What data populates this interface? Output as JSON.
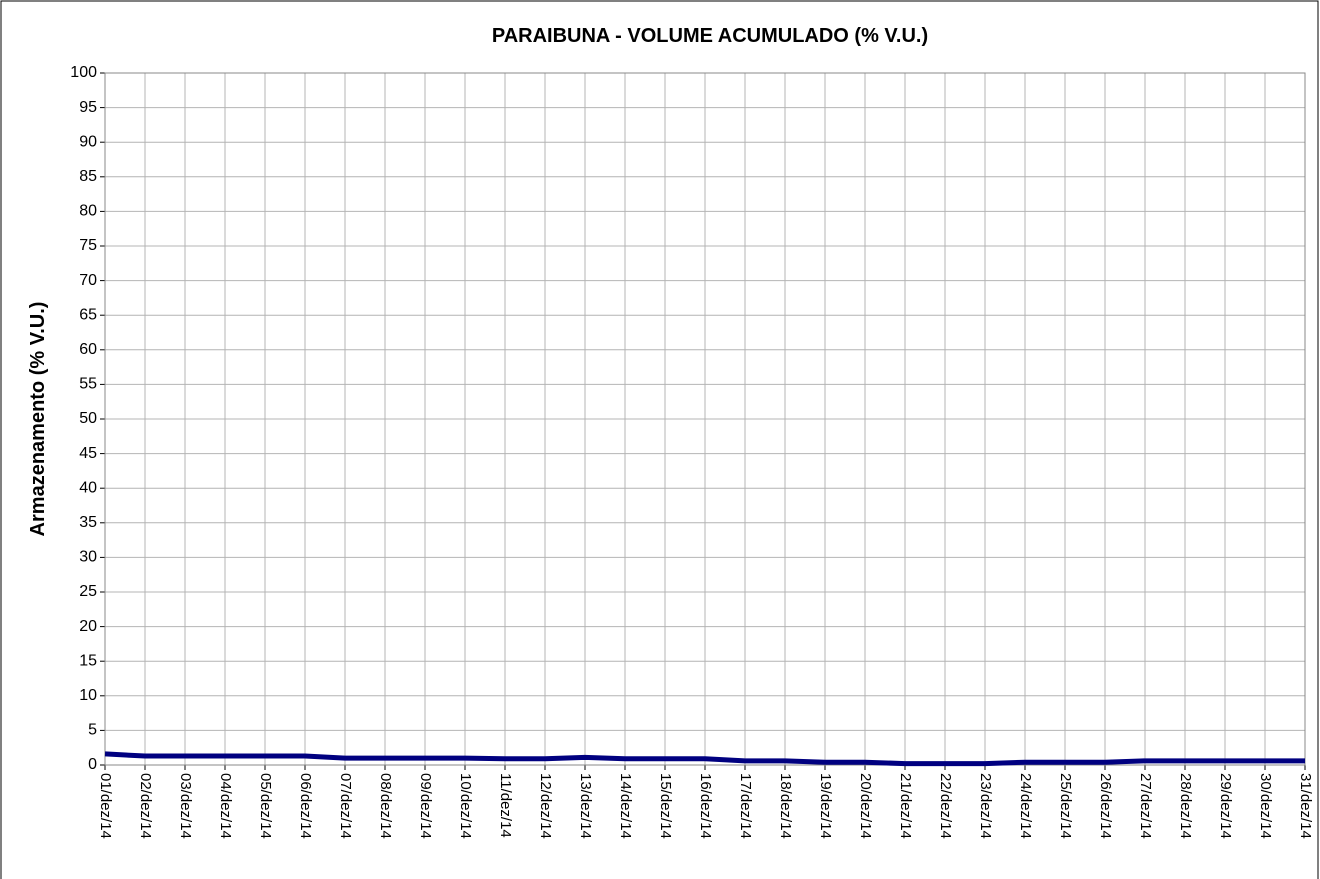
{
  "chart_data": {
    "type": "line",
    "title": "PARAIBUNA - VOLUME ACUMULADO (% V.U.)",
    "y_label": "Armazenamento (% V.U.)",
    "categories": [
      "01/dez/14",
      "02/dez/14",
      "03/dez/14",
      "04/dez/14",
      "05/dez/14",
      "06/dez/14",
      "07/dez/14",
      "08/dez/14",
      "09/dez/14",
      "10/dez/14",
      "11/dez/14",
      "12/dez/14",
      "13/dez/14",
      "14/dez/14",
      "15/dez/14",
      "16/dez/14",
      "17/dez/14",
      "18/dez/14",
      "19/dez/14",
      "20/dez/14",
      "21/dez/14",
      "22/dez/14",
      "23/dez/14",
      "24/dez/14",
      "25/dez/14",
      "26/dez/14",
      "27/dez/14",
      "28/dez/14",
      "29/dez/14",
      "30/dez/14",
      "31/dez/14"
    ],
    "series": [
      {
        "name": "Paraibuna",
        "color": "#000080",
        "values": [
          1.6,
          1.3,
          1.3,
          1.3,
          1.3,
          1.3,
          1.0,
          1.0,
          1.0,
          1.0,
          0.9,
          0.9,
          1.1,
          0.9,
          0.9,
          0.9,
          0.6,
          0.6,
          0.4,
          0.4,
          0.2,
          0.2,
          0.2,
          0.4,
          0.4,
          0.4,
          0.6,
          0.6,
          0.6,
          0.6,
          0.6
        ]
      }
    ],
    "ylim": [
      0,
      100
    ],
    "yticks": [
      0,
      5,
      10,
      15,
      20,
      25,
      30,
      35,
      40,
      45,
      50,
      55,
      60,
      65,
      70,
      75,
      80,
      85,
      90,
      95,
      100
    ],
    "grid": true
  }
}
